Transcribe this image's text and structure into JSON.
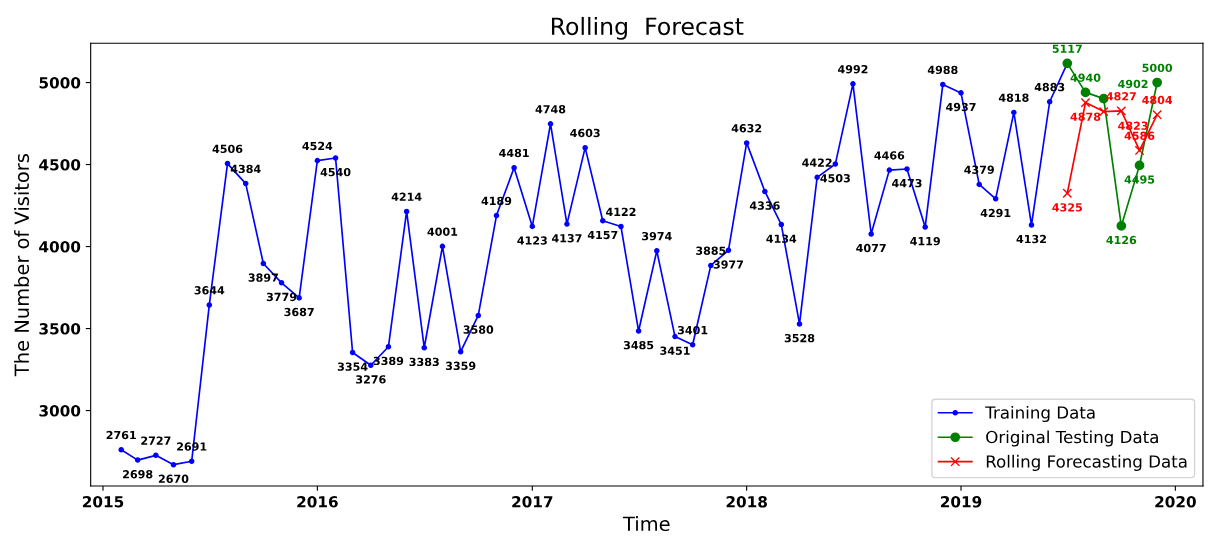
{
  "chart_data": {
    "type": "line",
    "title": "Rolling  Forecast",
    "xlabel": "Time",
    "ylabel": "The Number of Visitors",
    "xlim": [
      "2014-12-11",
      "2020-02-17"
    ],
    "ylim": [
      2540,
      5240
    ],
    "xticks": [
      {
        "value": "2015-01-01",
        "label": "2015"
      },
      {
        "value": "2016-01-01",
        "label": "2016"
      },
      {
        "value": "2017-01-01",
        "label": "2017"
      },
      {
        "value": "2018-01-01",
        "label": "2018"
      },
      {
        "value": "2019-01-01",
        "label": "2019"
      },
      {
        "value": "2020-01-01",
        "label": "2020"
      }
    ],
    "yticks": [
      3000,
      3500,
      4000,
      4500,
      5000
    ],
    "grid": false,
    "legend": "bottom right",
    "data_labels": true,
    "series": [
      {
        "name": "Training Data",
        "color": "#0000ff",
        "marker": "circle",
        "x": [
          "2015-02",
          "2015-03",
          "2015-04",
          "2015-05",
          "2015-06",
          "2015-07",
          "2015-08",
          "2015-09",
          "2015-10",
          "2015-11",
          "2015-12",
          "2016-01",
          "2016-02",
          "2016-03",
          "2016-04",
          "2016-05",
          "2016-06",
          "2016-07",
          "2016-08",
          "2016-09",
          "2016-10",
          "2016-11",
          "2016-12",
          "2017-01",
          "2017-02",
          "2017-03",
          "2017-04",
          "2017-05",
          "2017-06",
          "2017-07",
          "2017-08",
          "2017-09",
          "2017-10",
          "2017-11",
          "2017-12",
          "2018-01",
          "2018-02",
          "2018-03",
          "2018-04",
          "2018-05",
          "2018-06",
          "2018-07",
          "2018-08",
          "2018-09",
          "2018-10",
          "2018-11",
          "2018-12",
          "2019-01",
          "2019-02",
          "2019-03",
          "2019-04",
          "2019-05",
          "2019-06",
          "2019-07"
        ],
        "values": [
          2761,
          2698,
          2727,
          2670,
          2691,
          3644,
          4506,
          4384,
          3897,
          3779,
          3687,
          4524,
          4540,
          3354,
          3276,
          3389,
          4214,
          3383,
          4001,
          3359,
          3580,
          4189,
          4481,
          4123,
          4748,
          4137,
          4603,
          4157,
          4122,
          3485,
          3974,
          3451,
          3401,
          3885,
          3977,
          4632,
          4336,
          4134,
          3528,
          4422,
          4503,
          4992,
          4077,
          4466,
          4473,
          4119,
          4988,
          4937,
          4379,
          4291,
          4818,
          4132,
          4883,
          5117
        ],
        "value_labels": [
          "2761",
          "2698",
          "2727",
          "2670",
          "2691",
          "3644",
          "4506",
          "4384",
          "3897",
          "3779",
          "3687",
          "4524",
          "4540",
          "3354",
          "3276",
          "3389",
          "4214",
          "3383",
          "4001",
          "3359",
          "3580",
          "4189",
          "4481",
          "4123",
          "4748",
          "4137",
          "4603",
          "4157",
          "4122",
          "3485",
          "3974",
          "3451",
          "3401",
          "3885",
          "3977",
          "4632",
          "4336",
          "4134",
          "3528",
          "4422",
          "4503",
          "4992",
          "4077",
          "4466",
          "4473",
          "4119",
          "4988",
          "4937",
          "4379",
          "4291",
          "4818",
          "4132",
          "4883",
          null
        ]
      },
      {
        "name": "Original Testing Data",
        "color": "#008000",
        "marker": "circle",
        "x": [
          "2019-07",
          "2019-08",
          "2019-09",
          "2019-10",
          "2019-11",
          "2019-12"
        ],
        "values": [
          5117,
          4940,
          4902,
          4126,
          4495,
          5000
        ]
      },
      {
        "name": "Rolling Forecasting Data",
        "color": "#ff0000",
        "marker": "cross",
        "x": [
          "2019-07",
          "2019-08",
          "2019-09",
          "2019-10",
          "2019-11",
          "2019-12"
        ],
        "values": [
          4325,
          4878,
          4823,
          4827,
          4586,
          4804
        ]
      }
    ]
  }
}
